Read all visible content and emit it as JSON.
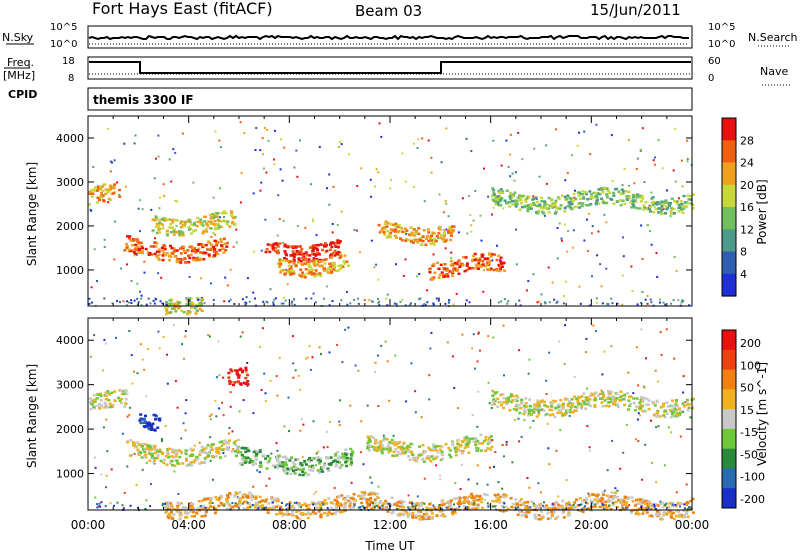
{
  "header": {
    "station": "Fort Hays East (fitACF)",
    "beam": "Beam 03",
    "date": "15/Jun/2011"
  },
  "strip": {
    "nsky_label": "N.Sky",
    "nsearch_label": "N.Search",
    "freq_label_1": "Freq.",
    "freq_label_2": "[MHz]",
    "nave_label": "Nave",
    "cpid_label": "CPID",
    "nsky_ticks": [
      "10^5",
      "10^0"
    ],
    "nsearch_ticks": [
      "10^5",
      "10^0"
    ],
    "freq_ticks": [
      "18",
      "8"
    ],
    "nave_ticks": [
      "60",
      "0"
    ],
    "cpid_text": "themis 3300 IF"
  },
  "chart_data": [
    {
      "type": "heatmap",
      "name": "",
      "ylabel": "Slant Range [km]",
      "xlabel": "",
      "ylim": [
        180,
        4500
      ],
      "xlim": [
        0,
        24
      ],
      "y_ticks": [
        "1000",
        "2000",
        "3000",
        "4000"
      ],
      "colorbar_label": "Power [dB]",
      "colorbar_ticks": [
        "4",
        "8",
        "12",
        "16",
        "20",
        "24",
        "28"
      ],
      "colors": [
        "#1f2fd8",
        "#2f5fb0",
        "#4f9a8a",
        "#6fbf5f",
        "#c8d83a",
        "#f0a020",
        "#f06010",
        "#e81010"
      ],
      "features": [
        {
          "t0": 0.0,
          "t1": 1.2,
          "r": 2700,
          "level": 5
        },
        {
          "t0": 1.4,
          "t1": 5.5,
          "r": 1500,
          "level": 6
        },
        {
          "t0": 2.5,
          "t1": 5.8,
          "r": 2100,
          "level": 4
        },
        {
          "t0": 7.0,
          "t1": 10.0,
          "r": 1500,
          "level": 7
        },
        {
          "t0": 7.5,
          "t1": 10.3,
          "r": 1150,
          "level": 5
        },
        {
          "t0": 11.5,
          "t1": 14.5,
          "r": 1900,
          "level": 5
        },
        {
          "t0": 13.5,
          "t1": 16.5,
          "r": 1100,
          "level": 6
        },
        {
          "t0": 16.0,
          "t1": 24.0,
          "r": 2600,
          "level": 3
        },
        {
          "t0": 3.0,
          "t1": 4.5,
          "r": 300,
          "level": 4
        }
      ]
    },
    {
      "type": "heatmap",
      "name": "",
      "ylabel": "Slant Range [km]",
      "xlabel": "Time UT",
      "ylim": [
        180,
        4500
      ],
      "xlim": [
        0,
        24
      ],
      "y_ticks": [
        "1000",
        "2000",
        "3000",
        "4000"
      ],
      "x_ticks": [
        "00:00",
        "04:00",
        "08:00",
        "12:00",
        "16:00",
        "20:00",
        "00:00"
      ],
      "colorbar_label": "Velocity [m s^-1]",
      "colorbar_ticks": [
        "200",
        "100",
        "50",
        "15",
        "-15",
        "-50",
        "-100",
        "-200"
      ],
      "colors": [
        "#1a2ec8",
        "#2a6ab0",
        "#2a8a3a",
        "#6ec83a",
        "#c8c8c8",
        "#f0b020",
        "#f08010",
        "#f04010",
        "#e81010"
      ],
      "features": [
        {
          "t0": 0.0,
          "t1": 1.5,
          "r": 2600,
          "level": 4
        },
        {
          "t0": 1.5,
          "t1": 6.0,
          "r": 1500,
          "level": 4
        },
        {
          "t0": 2.0,
          "t1": 2.8,
          "r": 2200,
          "level": 0
        },
        {
          "t0": 5.5,
          "t1": 6.3,
          "r": 3100,
          "level": 8
        },
        {
          "t0": 6.0,
          "t1": 10.5,
          "r": 1300,
          "level": 3
        },
        {
          "t0": 11.0,
          "t1": 16.0,
          "r": 1600,
          "level": 4
        },
        {
          "t0": 16.0,
          "t1": 24.0,
          "r": 2600,
          "level": 4
        },
        {
          "t0": 3.0,
          "t1": 24.0,
          "r": 300,
          "level": 5
        }
      ]
    }
  ]
}
